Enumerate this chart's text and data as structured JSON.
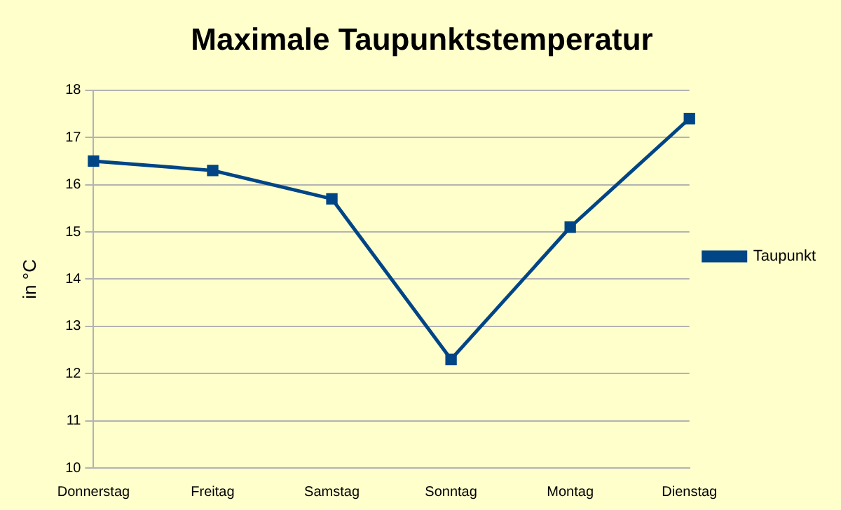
{
  "chart_data": {
    "type": "line",
    "title": "Maximale Taupunktstemperatur",
    "ylabel": "in °C",
    "categories": [
      "Donnerstag",
      "Freitag",
      "Samstag",
      "Sonntag",
      "Montag",
      "Dienstag"
    ],
    "series": [
      {
        "name": "Taupunkt",
        "color": "#004586",
        "values": [
          16.5,
          16.3,
          15.7,
          12.3,
          15.1,
          17.4
        ]
      }
    ],
    "ylim": [
      10,
      18
    ],
    "yticks": [
      10,
      11,
      12,
      13,
      14,
      15,
      16,
      17,
      18
    ],
    "grid": "y",
    "legend": "right",
    "marker": "square",
    "line_style": "solid"
  }
}
